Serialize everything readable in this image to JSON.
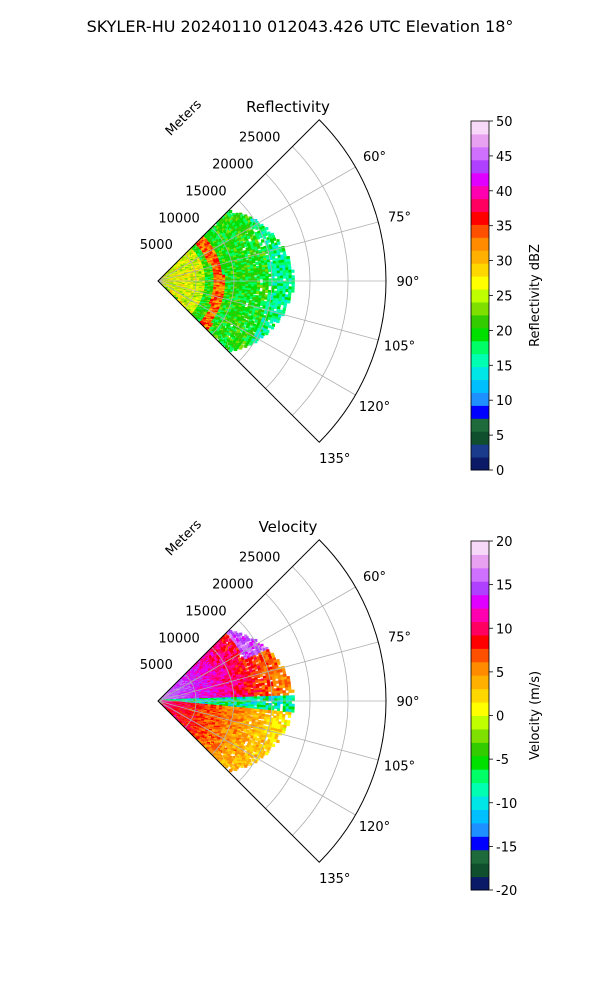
{
  "suptitle": "SKYLER-HU  20240110  012043.426 UTC Elevation 18°",
  "chart_data": [
    {
      "type": "polar-sector-radar",
      "title": "Reflectivity",
      "radial_label": "Meters",
      "radial_ticks": [
        "5000",
        "10000",
        "15000",
        "20000",
        "25000"
      ],
      "radial_tick_values": [
        5000,
        10000,
        15000,
        20000,
        25000
      ],
      "radial_max": 30000,
      "angle_range_deg": [
        45,
        135
      ],
      "angle_ticks": [
        "60°",
        "75°",
        "90°",
        "105°",
        "120°",
        "135°"
      ],
      "angle_tick_values": [
        60,
        75,
        90,
        105,
        120,
        135
      ],
      "grid": true,
      "data_extent_m": [
        0,
        18000
      ],
      "colorbar": {
        "label": "Reflectivity dBZ",
        "ticks": [
          "0",
          "5",
          "10",
          "15",
          "20",
          "25",
          "30",
          "35",
          "40",
          "45",
          "50"
        ],
        "range": [
          0,
          50
        ],
        "colors": [
          "#0b1a66",
          "#1a3a8c",
          "#0f4f2e",
          "#1e6a3a",
          "#0000ff",
          "#1e90ff",
          "#00bfff",
          "#00e5e5",
          "#00ffb0",
          "#00ff66",
          "#00e000",
          "#33cc00",
          "#7fe000",
          "#bfff00",
          "#ffff00",
          "#ffd700",
          "#ffb000",
          "#ff8c00",
          "#ff5000",
          "#ff0000",
          "#ff0060",
          "#ff00b0",
          "#e000ff",
          "#b040ff",
          "#d070ff",
          "#e8a0f0",
          "#f8d8f8"
        ]
      }
    },
    {
      "type": "polar-sector-radar",
      "title": "Velocity",
      "radial_label": "Meters",
      "radial_ticks": [
        "5000",
        "10000",
        "15000",
        "20000",
        "25000"
      ],
      "radial_tick_values": [
        5000,
        10000,
        15000,
        20000,
        25000
      ],
      "radial_max": 30000,
      "angle_range_deg": [
        45,
        135
      ],
      "angle_ticks": [
        "60°",
        "75°",
        "90°",
        "105°",
        "120°",
        "135°"
      ],
      "angle_tick_values": [
        60,
        75,
        90,
        105,
        120,
        135
      ],
      "grid": true,
      "data_extent_m": [
        0,
        18000
      ],
      "colorbar": {
        "label": "Velocity (m/s)",
        "ticks": [
          "-20",
          "-15",
          "-10",
          "-5",
          "0",
          "5",
          "10",
          "15",
          "20"
        ],
        "range": [
          -20,
          20
        ],
        "colors": [
          "#0b1a66",
          "#0f4f2e",
          "#1e6a3a",
          "#0000ff",
          "#1e90ff",
          "#00bfff",
          "#00e5e5",
          "#00ffb0",
          "#00ff66",
          "#00e000",
          "#33cc00",
          "#7fe000",
          "#bfff00",
          "#ffff00",
          "#ffd700",
          "#ffb000",
          "#ff8c00",
          "#ff5000",
          "#ff0000",
          "#ff0060",
          "#ff00b0",
          "#e000ff",
          "#b040ff",
          "#d070ff",
          "#e8a0f0",
          "#f8d8f8"
        ]
      }
    }
  ]
}
